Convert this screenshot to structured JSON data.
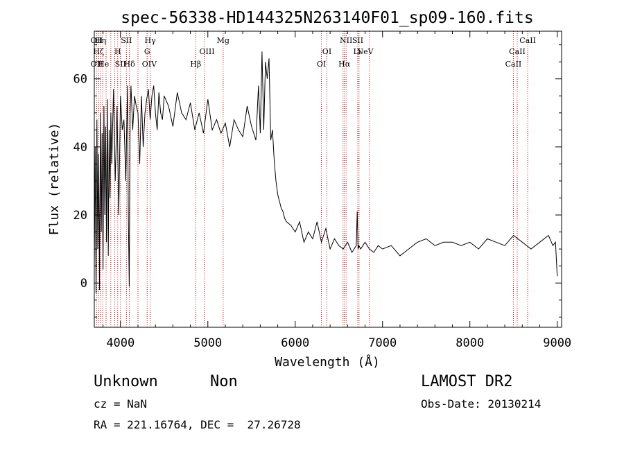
{
  "chart_data": {
    "type": "line",
    "title": "spec-56338-HD144325N263140F01_sp09-160.fits",
    "xlabel": "Wavelength (Å)",
    "ylabel": "Flux (relative)",
    "xlim": [
      3700,
      9050
    ],
    "ylim": [
      -13,
      74
    ],
    "xticks": [
      4000,
      5000,
      6000,
      7000,
      8000,
      9000
    ],
    "yticks": [
      0,
      20,
      40,
      60
    ],
    "grid": false,
    "line_color": "#000000",
    "marker_color": "#cc0000",
    "series": [
      {
        "x": [
          3700,
          3710,
          3720,
          3730,
          3740,
          3750,
          3760,
          3770,
          3780,
          3790,
          3800,
          3810,
          3820,
          3830,
          3840,
          3850,
          3860,
          3870,
          3880,
          3890,
          3900,
          3920,
          3940,
          3960,
          3980,
          4000,
          4020,
          4040,
          4060,
          4080,
          4090,
          4100,
          4110,
          4120,
          4140,
          4160,
          4180,
          4200,
          4220,
          4240,
          4260,
          4280,
          4300,
          4320,
          4340,
          4360,
          4380,
          4400,
          4420,
          4440,
          4460,
          4480,
          4500,
          4550,
          4600,
          4650,
          4700,
          4750,
          4800,
          4850,
          4900,
          4950,
          5000,
          5050,
          5100,
          5150,
          5200,
          5250,
          5300,
          5350,
          5400,
          5450,
          5500,
          5550,
          5580,
          5600,
          5620,
          5640,
          5660,
          5680,
          5700,
          5720,
          5740,
          5760,
          5780,
          5800,
          5820,
          5840,
          5860,
          5880,
          5900,
          5950,
          6000,
          6050,
          6100,
          6150,
          6200,
          6250,
          6300,
          6350,
          6400,
          6450,
          6500,
          6550,
          6600,
          6650,
          6700,
          6710,
          6720,
          6730,
          6750,
          6800,
          6850,
          6900,
          6950,
          7000,
          7100,
          7200,
          7300,
          7400,
          7500,
          7600,
          7700,
          7800,
          7900,
          8000,
          8100,
          8200,
          8300,
          8400,
          8500,
          8600,
          8700,
          8800,
          8900,
          8950,
          8980,
          9000
        ],
        "values": [
          5,
          40,
          -3,
          48,
          10,
          38,
          -2,
          50,
          15,
          44,
          4,
          52,
          20,
          46,
          12,
          54,
          8,
          45,
          25,
          50,
          35,
          57,
          30,
          52,
          20,
          55,
          45,
          48,
          30,
          58,
          20,
          -1,
          50,
          58,
          45,
          55,
          52,
          50,
          35,
          55,
          40,
          50,
          54,
          57,
          48,
          55,
          58,
          50,
          45,
          56,
          50,
          48,
          55,
          52,
          46,
          56,
          50,
          48,
          53,
          45,
          50,
          44,
          54,
          45,
          48,
          44,
          47,
          40,
          48,
          45,
          43,
          52,
          46,
          42,
          58,
          44,
          68,
          45,
          65,
          60,
          66,
          42,
          45,
          36,
          30,
          26,
          24,
          22,
          21,
          19,
          18,
          17,
          15,
          18,
          12,
          15,
          13,
          18,
          12,
          16,
          10,
          13,
          11,
          10,
          12,
          9,
          11,
          21,
          10,
          11,
          10,
          12,
          10,
          9,
          11,
          10,
          11,
          8,
          10,
          12,
          13,
          11,
          12,
          12,
          11,
          12,
          10,
          13,
          12,
          11,
          14,
          12,
          10,
          12,
          14,
          11,
          12,
          2
        ]
      }
    ],
    "line_markers": [
      {
        "label": "OII",
        "x": 3727,
        "tier": 1
      },
      {
        "label": "Hζ",
        "x": 3750,
        "tier": 2
      },
      {
        "label": "Hη",
        "x": 3772,
        "tier": 1
      },
      {
        "label": "OII",
        "x": 3727,
        "tier": 3
      },
      {
        "label": "He",
        "x": 3805,
        "tier": 3
      },
      {
        "label": "SII",
        "x": 4068,
        "tier": 1
      },
      {
        "label": "H",
        "x": 3968,
        "tier": 2
      },
      {
        "label": "SII",
        "x": 4000,
        "tier": 3
      },
      {
        "label": "Hδ",
        "x": 4102,
        "tier": 3
      },
      {
        "label": "Hγ",
        "x": 4340,
        "tier": 1
      },
      {
        "label": "G",
        "x": 4305,
        "tier": 2
      },
      {
        "label": "OIV",
        "x": 4330,
        "tier": 3
      },
      {
        "label": "Hβ",
        "x": 4861,
        "tier": 3
      },
      {
        "label": "OIII",
        "x": 4990,
        "tier": 2
      },
      {
        "label": "Mg",
        "x": 5175,
        "tier": 1
      },
      {
        "label": "OI",
        "x": 6300,
        "tier": 3
      },
      {
        "label": "OI",
        "x": 6363,
        "tier": 2
      },
      {
        "label": "NII",
        "x": 6583,
        "tier": 1
      },
      {
        "label": "Hα",
        "x": 6563,
        "tier": 3
      },
      {
        "label": "SII",
        "x": 6716,
        "tier": 1
      },
      {
        "label": "Li",
        "x": 6708,
        "tier": 2
      },
      {
        "label": "NeV",
        "x": 6800,
        "tier": 2
      },
      {
        "label": "CaII",
        "x": 8662,
        "tier": 1
      },
      {
        "label": "CaII",
        "x": 8542,
        "tier": 2
      },
      {
        "label": "CaII",
        "x": 8498,
        "tier": 3
      }
    ],
    "marker_lines_x": [
      3727,
      3750,
      3772,
      3797,
      3835,
      3889,
      3934,
      3968,
      4000,
      4068,
      4102,
      4200,
      4305,
      4340,
      4861,
      4959,
      5175,
      6300,
      6363,
      6548,
      6563,
      6583,
      6716,
      6731,
      6850,
      8498,
      8542,
      8662
    ]
  },
  "footer": {
    "object_class": "Unknown",
    "subclass": "Non",
    "survey": "LAMOST DR2",
    "redshift": "cz = NaN",
    "obs_date": "Obs-Date: 20130214",
    "coords": "RA = 221.16764, DEC =  27.26728"
  }
}
